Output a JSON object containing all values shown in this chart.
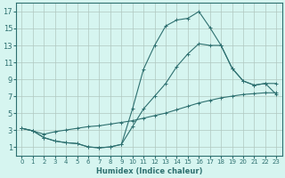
{
  "xlabel": "Humidex (Indice chaleur)",
  "bg_color": "#d6f5f0",
  "grid_color": "#b0c8c0",
  "line_color": "#2e7070",
  "xlim": [
    -0.5,
    23.5
  ],
  "ylim": [
    0,
    18
  ],
  "xticks": [
    0,
    1,
    2,
    3,
    4,
    5,
    6,
    7,
    8,
    9,
    10,
    11,
    12,
    13,
    14,
    15,
    16,
    17,
    18,
    19,
    20,
    21,
    22,
    23
  ],
  "yticks": [
    1,
    3,
    5,
    7,
    9,
    11,
    13,
    15,
    17
  ],
  "curve1_x": [
    0,
    1,
    2,
    3,
    4,
    5,
    6,
    7,
    8,
    9,
    10,
    11,
    12,
    13,
    14,
    15,
    16,
    17,
    18,
    19,
    20,
    21,
    22,
    23
  ],
  "curve1_y": [
    3.2,
    2.9,
    2.1,
    1.7,
    1.5,
    1.4,
    1.0,
    0.9,
    1.0,
    1.3,
    5.5,
    10.2,
    13.0,
    15.3,
    16.0,
    16.2,
    17.0,
    15.1,
    13.0,
    10.3,
    8.8,
    8.3,
    8.5,
    8.5
  ],
  "curve2_x": [
    0,
    1,
    2,
    3,
    4,
    5,
    6,
    7,
    8,
    9,
    10,
    11,
    12,
    13,
    14,
    15,
    16,
    17,
    18,
    19,
    20,
    21,
    22,
    23
  ],
  "curve2_y": [
    3.2,
    2.9,
    2.1,
    1.7,
    1.5,
    1.4,
    1.0,
    0.9,
    1.0,
    1.3,
    3.4,
    5.5,
    7.0,
    8.5,
    10.5,
    12.0,
    13.2,
    13.0,
    13.0,
    10.3,
    8.8,
    8.3,
    8.5,
    7.2
  ],
  "curve3_x": [
    0,
    1,
    2,
    3,
    4,
    5,
    6,
    7,
    8,
    9,
    10,
    11,
    12,
    13,
    14,
    15,
    16,
    17,
    18,
    19,
    20,
    21,
    22,
    23
  ],
  "curve3_y": [
    3.2,
    2.9,
    2.5,
    2.8,
    3.0,
    3.2,
    3.4,
    3.5,
    3.7,
    3.9,
    4.1,
    4.4,
    4.7,
    5.0,
    5.4,
    5.8,
    6.2,
    6.5,
    6.8,
    7.0,
    7.2,
    7.3,
    7.4,
    7.4
  ]
}
